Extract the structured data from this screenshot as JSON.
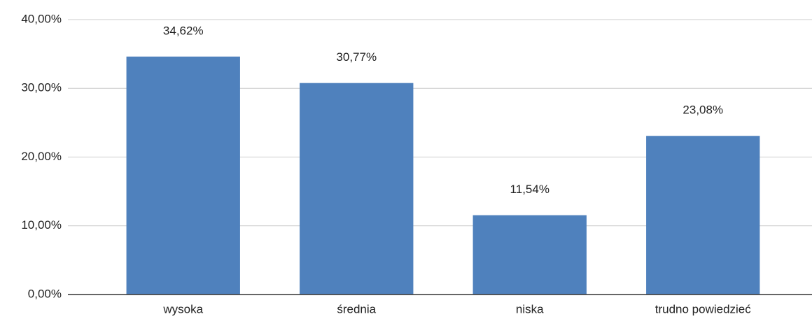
{
  "chart_data": {
    "type": "bar",
    "categories": [
      "wysoka",
      "średnia",
      "niska",
      "trudno powiedzieć"
    ],
    "values": [
      34.62,
      30.77,
      11.54,
      23.08
    ],
    "value_labels": [
      "34,62%",
      "30,77%",
      "11,54%",
      "23,08%"
    ],
    "color": "#4f81bd",
    "ylim": [
      0,
      40
    ],
    "yticks": [
      {
        "value": 0,
        "label": "0,00%"
      },
      {
        "value": 10,
        "label": "10,00%"
      },
      {
        "value": 20,
        "label": "20,00%"
      },
      {
        "value": 30,
        "label": "30,00%"
      },
      {
        "value": 40,
        "label": "40,00%"
      }
    ],
    "grid": true
  }
}
